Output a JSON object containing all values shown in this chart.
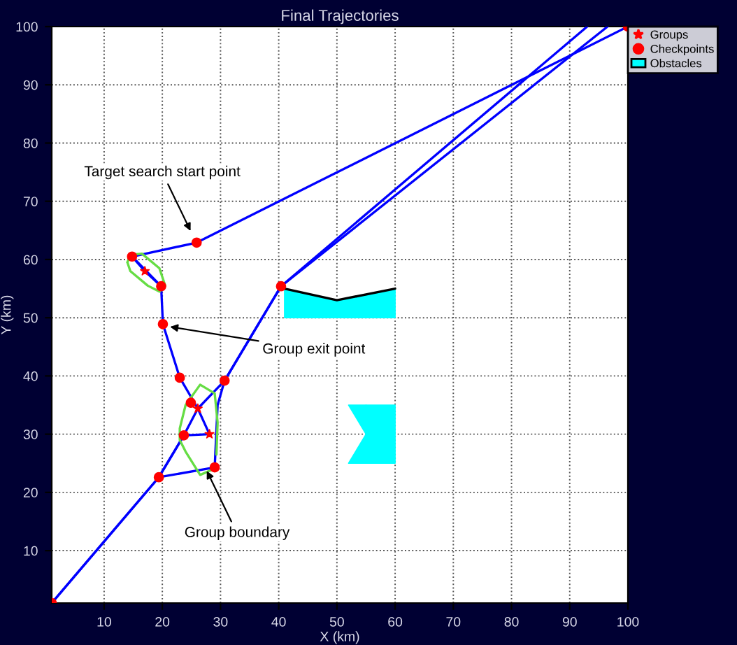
{
  "chart_data": {
    "type": "line",
    "title": "Final Trajectories",
    "xlabel": "X (km)",
    "ylabel": "Y (km)",
    "xlim": [
      1,
      100
    ],
    "ylim": [
      1,
      100
    ],
    "xticks": [
      10,
      20,
      30,
      40,
      50,
      60,
      70,
      80,
      90,
      100
    ],
    "yticks": [
      10,
      20,
      30,
      40,
      50,
      60,
      70,
      80,
      90,
      100
    ],
    "grid": true,
    "legend": "top right",
    "line_style": "solid",
    "series": [
      {
        "color": "#0000ff",
        "x": [
          1,
          19.4,
          29.0,
          29.5,
          30.7,
          40.4,
          93
        ],
        "values": [
          1,
          22.6,
          24.3,
          35,
          39.2,
          55.4,
          100
        ]
      },
      {
        "color": "#0000ff",
        "x": [
          1,
          19.4,
          23.7,
          26.1,
          30.7,
          40.4,
          96.5
        ],
        "values": [
          1,
          22.6,
          29.8,
          34.4,
          39.2,
          55.4,
          100
        ]
      },
      {
        "color": "#0000ff",
        "x": [
          19.4,
          23.7,
          28.1,
          26.1,
          23.0,
          20.1,
          19.8,
          14.8,
          25.9,
          100
        ],
        "values": [
          22.6,
          29.8,
          30.0,
          34.4,
          39.7,
          48.9,
          55.4,
          60.5,
          62.9,
          100
        ]
      },
      {
        "color": "#0000ff",
        "x": [
          14.8,
          17,
          19.8
        ],
        "values": [
          60.5,
          58,
          55.4
        ]
      },
      {
        "type": "line",
        "color": "#66dd44",
        "x": [
          14.0,
          14.5,
          16.5,
          19.5,
          20.5
        ],
        "values": [
          59.5,
          60.8,
          61.0,
          58.5,
          55.5
        ]
      },
      {
        "type": "line",
        "color": "#66dd44",
        "x": [
          14.0,
          14.5,
          17.5,
          19.5,
          20.5
        ],
        "values": [
          59.5,
          58.0,
          55.5,
          54.5,
          55.5
        ]
      },
      {
        "type": "line",
        "color": "#66dd44",
        "x": [
          28.8,
          26.5,
          24.0,
          23.0,
          23.0,
          24.0,
          26.5,
          29.0,
          29.5,
          29.3
        ],
        "values": [
          24.0,
          23.0,
          27.0,
          29.0,
          31.0,
          35.0,
          38.5,
          37.0,
          32.0,
          26.5
        ]
      },
      {
        "type": "scatter",
        "name": "Groups",
        "color": "#ff0000",
        "marker": "star",
        "x": [
          17,
          26.1,
          28.1
        ],
        "values": [
          58,
          34.4,
          30.0
        ]
      },
      {
        "type": "scatter",
        "name": "Checkpoints",
        "color": "#ff0000",
        "marker": "circle",
        "x": [
          1,
          19.4,
          23.7,
          29.0,
          24.9,
          30.7,
          23.0,
          20.1,
          19.8,
          14.8,
          25.9,
          40.4,
          100
        ],
        "values": [
          1,
          22.6,
          29.8,
          24.3,
          35.4,
          39.2,
          39.7,
          48.9,
          55.4,
          60.5,
          62.9,
          55.4,
          100
        ]
      },
      {
        "type": "line",
        "name": "Obstacles",
        "color": "#00ffff",
        "x": [
          41,
          50,
          60
        ],
        "lower": [
          50,
          50,
          50
        ],
        "upper": [
          55,
          53,
          55
        ],
        "values": [
          null,
          null,
          null
        ]
      },
      {
        "type": "line",
        "color": "#000000",
        "x": [
          41,
          50,
          60
        ],
        "values": [
          55,
          53,
          55
        ]
      },
      {
        "type": "line",
        "color": "#00ffff",
        "x": [
          52,
          55,
          55,
          60
        ],
        "lower": [
          25,
          25,
          25,
          25
        ],
        "upper": [
          25,
          30,
          35,
          35
        ],
        "values": [
          null,
          null,
          null,
          null
        ]
      },
      {
        "type": "line",
        "color": "#00ffff",
        "x": [
          52,
          55
        ],
        "lower": [
          35,
          30
        ],
        "upper": [
          35,
          35
        ],
        "values": [
          null,
          null
        ]
      }
    ],
    "annotations": [
      {
        "text": "Target search start point",
        "x": 25.0,
        "y": 64.6
      },
      {
        "text": "Group exit point",
        "x": 21.0,
        "y": 48.5
      },
      {
        "text": "Group boundary",
        "x": 27.5,
        "y": 24.0
      }
    ]
  }
}
